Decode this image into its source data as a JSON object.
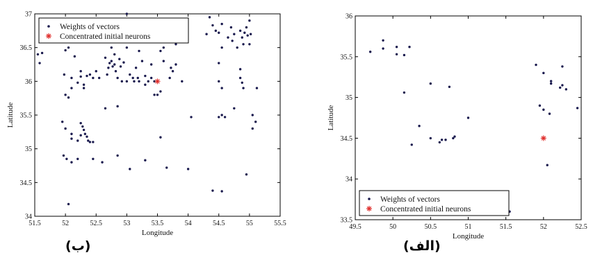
{
  "chart_data": [
    {
      "type": "scatter",
      "panel_caption": "(ب)",
      "xlabel": "Longitude",
      "ylabel": "Latitude",
      "xlim": [
        51.5,
        55.5
      ],
      "ylim": [
        34,
        37
      ],
      "x_ticks": [
        "51.5",
        "52",
        "52.5",
        "53",
        "53.5",
        "54",
        "54.5",
        "55",
        "55.5"
      ],
      "y_ticks": [
        "34",
        "34.5",
        "35",
        "35.5",
        "36",
        "36.5",
        "37"
      ],
      "legend_position": "top-left",
      "series": [
        {
          "name": "Weights of vectors",
          "marker": "dot",
          "color": "#1a1a4e",
          "points": [
            [
              51.55,
              36.4
            ],
            [
              51.58,
              36.27
            ],
            [
              51.62,
              36.42
            ],
            [
              51.98,
              36.1
            ],
            [
              52.0,
              36.46
            ],
            [
              52.05,
              36.5
            ],
            [
              52.1,
              36.05
            ],
            [
              52.15,
              36.37
            ],
            [
              52.0,
              35.8
            ],
            [
              52.05,
              35.76
            ],
            [
              52.1,
              35.9
            ],
            [
              52.2,
              35.98
            ],
            [
              52.25,
              36.07
            ],
            [
              52.25,
              36.15
            ],
            [
              52.3,
              35.95
            ],
            [
              52.35,
              36.08
            ],
            [
              52.4,
              36.1
            ],
            [
              52.45,
              36.05
            ],
            [
              52.5,
              36.15
            ],
            [
              52.55,
              36.05
            ],
            [
              52.3,
              35.9
            ],
            [
              51.95,
              35.4
            ],
            [
              52.0,
              35.3
            ],
            [
              52.1,
              35.22
            ],
            [
              52.1,
              35.15
            ],
            [
              52.2,
              35.12
            ],
            [
              52.25,
              35.2
            ],
            [
              52.28,
              35.33
            ],
            [
              52.3,
              35.28
            ],
            [
              52.32,
              35.22
            ],
            [
              52.35,
              35.18
            ],
            [
              52.37,
              35.12
            ],
            [
              52.4,
              35.1
            ],
            [
              52.45,
              35.1
            ],
            [
              52.25,
              35.38
            ],
            [
              51.97,
              34.9
            ],
            [
              52.02,
              34.85
            ],
            [
              52.1,
              34.8
            ],
            [
              52.2,
              34.85
            ],
            [
              52.45,
              34.85
            ],
            [
              52.6,
              34.8
            ],
            [
              52.65,
              35.6
            ],
            [
              52.65,
              36.35
            ],
            [
              52.68,
              36.1
            ],
            [
              52.7,
              36.2
            ],
            [
              52.72,
              36.27
            ],
            [
              52.75,
              36.3
            ],
            [
              52.75,
              36.5
            ],
            [
              52.77,
              36.22
            ],
            [
              52.8,
              36.25
            ],
            [
              52.8,
              36.4
            ],
            [
              52.82,
              36.15
            ],
            [
              52.85,
              36.05
            ],
            [
              52.88,
              36.33
            ],
            [
              52.9,
              36.22
            ],
            [
              52.92,
              36.0
            ],
            [
              52.95,
              36.28
            ],
            [
              52.85,
              35.63
            ],
            [
              52.85,
              34.9
            ],
            [
              53.0,
              37.0
            ],
            [
              53.0,
              36.5
            ],
            [
              53.0,
              36.0
            ],
            [
              53.05,
              36.1
            ],
            [
              53.1,
              36.05
            ],
            [
              53.12,
              36.0
            ],
            [
              53.15,
              36.2
            ],
            [
              53.18,
              36.05
            ],
            [
              53.2,
              36.0
            ],
            [
              53.2,
              36.45
            ],
            [
              53.25,
              36.3
            ],
            [
              53.3,
              36.08
            ],
            [
              53.3,
              35.95
            ],
            [
              53.35,
              36.0
            ],
            [
              53.4,
              36.05
            ],
            [
              53.4,
              36.25
            ],
            [
              53.45,
              36.0
            ],
            [
              53.45,
              35.8
            ],
            [
              53.5,
              35.8
            ],
            [
              53.55,
              35.85
            ],
            [
              53.55,
              36.45
            ],
            [
              53.6,
              36.5
            ],
            [
              53.6,
              36.3
            ],
            [
              53.45,
              36.6
            ],
            [
              53.5,
              36.62
            ],
            [
              53.55,
              35.17
            ],
            [
              53.7,
              36.05
            ],
            [
              53.72,
              36.2
            ],
            [
              53.75,
              36.15
            ],
            [
              53.8,
              36.25
            ],
            [
              53.8,
              36.55
            ],
            [
              53.85,
              36.7
            ],
            [
              53.9,
              36.0
            ],
            [
              53.3,
              34.83
            ],
            [
              53.05,
              34.7
            ],
            [
              53.65,
              34.72
            ],
            [
              54.0,
              34.7
            ],
            [
              54.05,
              35.47
            ],
            [
              54.3,
              36.7
            ],
            [
              54.35,
              36.95
            ],
            [
              54.4,
              36.83
            ],
            [
              54.45,
              36.75
            ],
            [
              54.5,
              36.72
            ],
            [
              54.55,
              36.5
            ],
            [
              54.55,
              36.85
            ],
            [
              54.5,
              36.27
            ],
            [
              54.5,
              36.0
            ],
            [
              54.55,
              35.9
            ],
            [
              54.55,
              35.5
            ],
            [
              54.6,
              35.47
            ],
            [
              54.5,
              35.47
            ],
            [
              54.65,
              36.65
            ],
            [
              54.7,
              36.8
            ],
            [
              54.72,
              36.6
            ],
            [
              54.75,
              36.7
            ],
            [
              54.8,
              36.5
            ],
            [
              54.85,
              36.75
            ],
            [
              54.88,
              36.65
            ],
            [
              54.9,
              36.55
            ],
            [
              54.92,
              36.72
            ],
            [
              54.95,
              36.8
            ],
            [
              54.97,
              36.68
            ],
            [
              55.0,
              36.55
            ],
            [
              55.0,
              36.9
            ],
            [
              55.02,
              36.7
            ],
            [
              54.85,
              36.18
            ],
            [
              54.85,
              36.05
            ],
            [
              54.88,
              35.98
            ],
            [
              54.9,
              35.9
            ],
            [
              54.75,
              35.6
            ],
            [
              55.05,
              35.5
            ],
            [
              55.05,
              35.3
            ],
            [
              55.1,
              35.4
            ],
            [
              55.12,
              35.9
            ],
            [
              54.4,
              34.38
            ],
            [
              54.55,
              34.37
            ],
            [
              54.95,
              34.62
            ],
            [
              52.05,
              34.18
            ]
          ]
        },
        {
          "name": "Concentrated initial  neurons",
          "marker": "star",
          "color": "#e0302e",
          "points": [
            [
              53.5,
              36.0
            ]
          ]
        }
      ]
    },
    {
      "type": "scatter",
      "panel_caption": "(الف)",
      "xlabel": "Longitude",
      "ylabel": "Latitude",
      "xlim": [
        49.5,
        52.5
      ],
      "ylim": [
        33.5,
        36
      ],
      "x_ticks": [
        "49.5",
        "50",
        "50.5",
        "51",
        "51.5",
        "52",
        "52.5"
      ],
      "y_ticks": [
        "33.5",
        "34",
        "34.5",
        "35",
        "35.5",
        "36"
      ],
      "legend_position": "bottom-left",
      "series": [
        {
          "name": "Weights of vectors",
          "marker": "dot",
          "color": "#1a1a4e",
          "points": [
            [
              49.7,
              35.56
            ],
            [
              49.87,
              35.7
            ],
            [
              49.87,
              35.6
            ],
            [
              50.05,
              35.62
            ],
            [
              50.05,
              35.53
            ],
            [
              50.15,
              35.52
            ],
            [
              50.22,
              35.62
            ],
            [
              50.15,
              35.06
            ],
            [
              50.5,
              35.17
            ],
            [
              50.75,
              35.13
            ],
            [
              50.35,
              34.65
            ],
            [
              50.25,
              34.42
            ],
            [
              50.5,
              34.5
            ],
            [
              50.62,
              34.45
            ],
            [
              50.65,
              34.48
            ],
            [
              50.7,
              34.48
            ],
            [
              50.8,
              34.5
            ],
            [
              50.82,
              34.52
            ],
            [
              51.0,
              34.75
            ],
            [
              51.9,
              35.4
            ],
            [
              52.0,
              35.3
            ],
            [
              51.95,
              34.9
            ],
            [
              52.0,
              34.85
            ],
            [
              52.1,
              35.2
            ],
            [
              52.1,
              35.17
            ],
            [
              52.08,
              34.8
            ],
            [
              52.25,
              35.38
            ],
            [
              52.25,
              35.15
            ],
            [
              52.22,
              35.12
            ],
            [
              52.3,
              35.1
            ],
            [
              52.45,
              34.87
            ],
            [
              52.05,
              34.17
            ],
            [
              51.55,
              33.6
            ]
          ]
        },
        {
          "name": "Concentrated initial  neurons",
          "marker": "star",
          "color": "#e0302e",
          "points": [
            [
              52.0,
              34.5
            ]
          ]
        }
      ]
    }
  ]
}
